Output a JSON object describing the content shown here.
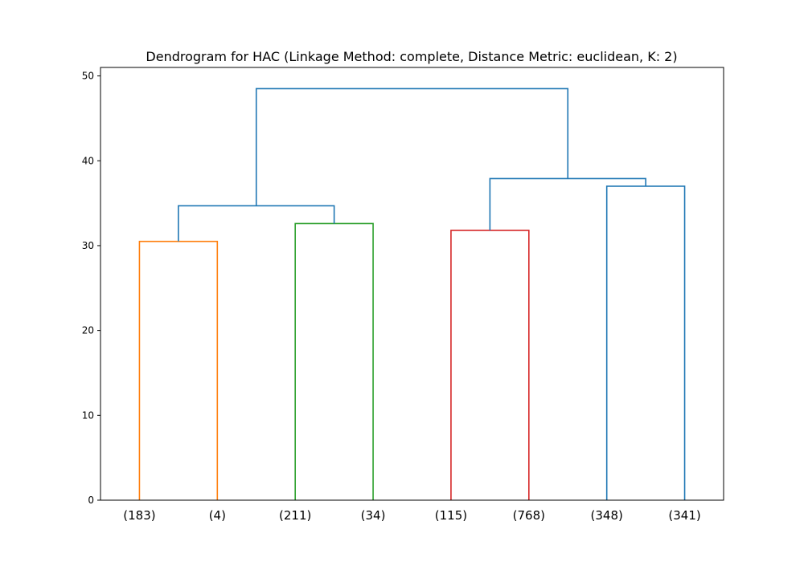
{
  "chart_data": {
    "type": "dendrogram",
    "title": "Dendrogram for HAC (Linkage Method: complete, Distance Metric: euclidean, K: 2)",
    "xlabel": "",
    "ylabel": "",
    "ylim": [
      0,
      51
    ],
    "yticks": [
      0,
      10,
      20,
      30,
      40,
      50
    ],
    "ytick_labels": [
      "0",
      "10",
      "20",
      "30",
      "40",
      "50"
    ],
    "leaves": [
      "(183)",
      "(4)",
      "(211)",
      "(34)",
      "(115)",
      "(768)",
      "(348)",
      "(341)"
    ],
    "grid": false,
    "colors": {
      "orange": "#ff7f0e",
      "green": "#2ca02c",
      "red": "#d62728",
      "blue": "#1f77b4"
    },
    "links": [
      {
        "left": {
          "leaf": 0
        },
        "right": {
          "leaf": 1
        },
        "height": 30.5,
        "color": "#ff7f0e"
      },
      {
        "left": {
          "leaf": 2
        },
        "right": {
          "leaf": 3
        },
        "height": 32.6,
        "color": "#2ca02c"
      },
      {
        "left": {
          "leaf": 4
        },
        "right": {
          "leaf": 5
        },
        "height": 31.8,
        "color": "#d62728"
      },
      {
        "left": {
          "leaf": 6
        },
        "right": {
          "leaf": 7
        },
        "height": 37.0,
        "color": "#1f77b4"
      },
      {
        "left": {
          "node": 0
        },
        "right": {
          "node": 1
        },
        "height": 34.7,
        "color": "#1f77b4"
      },
      {
        "left": {
          "node": 2
        },
        "right": {
          "node": 3
        },
        "height": 37.9,
        "color": "#1f77b4"
      },
      {
        "left": {
          "node": 4
        },
        "right": {
          "node": 5
        },
        "height": 48.5,
        "color": "#1f77b4"
      }
    ]
  }
}
